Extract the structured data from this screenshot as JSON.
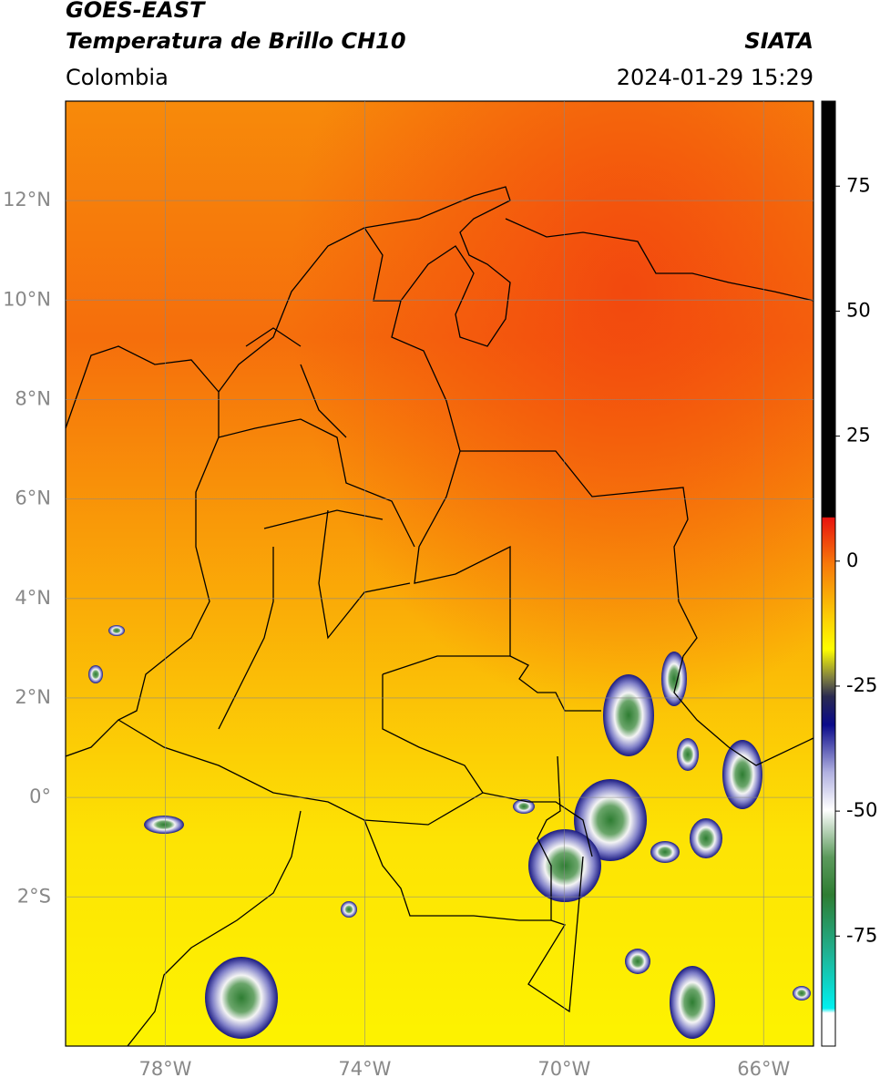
{
  "header": {
    "title": "GOES-EAST",
    "subtitle": "Temperatura de Brillo CH10",
    "region": "Colombia",
    "source": "SIATA",
    "datetime": "2024-01-29 15:29"
  },
  "map": {
    "xlim": [
      -80,
      -65
    ],
    "ylim": [
      -5,
      14
    ],
    "xticks": [
      {
        "value": -78,
        "label": "78°W"
      },
      {
        "value": -74,
        "label": "74°W"
      },
      {
        "value": -70,
        "label": "70°W"
      },
      {
        "value": -66,
        "label": "66°W"
      }
    ],
    "yticks": [
      {
        "value": 12,
        "label": "12°N"
      },
      {
        "value": 10,
        "label": "10°N"
      },
      {
        "value": 8,
        "label": "8°N"
      },
      {
        "value": 6,
        "label": "6°N"
      },
      {
        "value": 4,
        "label": "4°N"
      },
      {
        "value": 2,
        "label": "2°N"
      },
      {
        "value": 0,
        "label": "0°"
      },
      {
        "value": -2,
        "label": "2°S"
      }
    ]
  },
  "colorbar": {
    "lim": [
      -97,
      92
    ],
    "ticks": [
      75,
      50,
      25,
      0,
      -25,
      -50,
      -75
    ]
  }
}
